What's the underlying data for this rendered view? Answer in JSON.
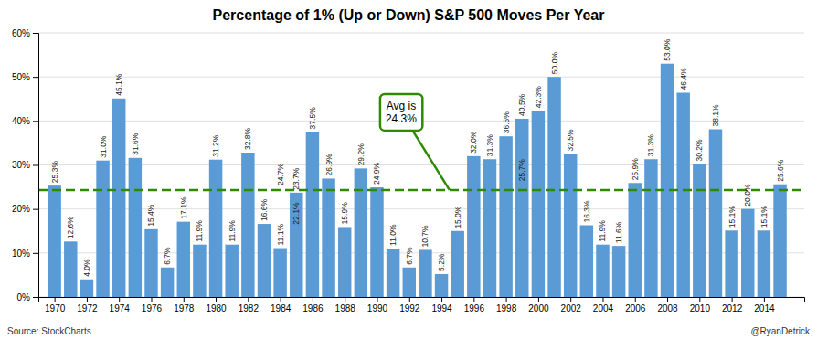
{
  "chart_data": {
    "type": "bar",
    "title": "Percentage of 1% (Up or Down) S&P 500 Moves Per Year",
    "x": [
      1970,
      1971,
      1972,
      1973,
      1974,
      1975,
      1976,
      1977,
      1978,
      1979,
      1980,
      1981,
      1982,
      1983,
      1984,
      1985,
      1986,
      1987,
      1988,
      1989,
      1990,
      1991,
      1992,
      1993,
      1994,
      1995,
      1996,
      1997,
      1998,
      1999,
      2000,
      2001,
      2002,
      2003,
      2004,
      2005,
      2006,
      2007,
      2008,
      2009,
      2010,
      2011,
      2012,
      2013,
      2014,
      2015
    ],
    "values": [
      25.3,
      12.6,
      4.0,
      31.0,
      45.1,
      31.6,
      15.4,
      6.7,
      17.1,
      11.9,
      31.2,
      11.9,
      32.8,
      16.6,
      11.1,
      23.7,
      37.5,
      26.9,
      15.9,
      29.2,
      24.9,
      11.0,
      6.7,
      10.7,
      5.2,
      15.0,
      32.0,
      31.3,
      36.5,
      40.5,
      42.3,
      50.0,
      32.5,
      16.3,
      11.9,
      11.6,
      25.9,
      31.3,
      53.0,
      46.4,
      30.2,
      38.1,
      15.1,
      20.0,
      15.1,
      25.6
    ],
    "value_labels": [
      "25.3%",
      "12.6%",
      "4.0%",
      "31.0%",
      "45.1%",
      "31.6%",
      "15.4%",
      "6.7%",
      "17.1%",
      "11.9%",
      "31.2%",
      "11.9%",
      "32.8%",
      "16.6%",
      "11.1%",
      "23.7%",
      "37.5%",
      "26.9%",
      "15.9%",
      "29.2%",
      "24.9%",
      "11.0%",
      "6.7%",
      "10.7%",
      "5.2%",
      "15.0%",
      "32.0%",
      "31.3%",
      "36.5%",
      "40.5%",
      "42.3%",
      "50.0%",
      "32.5%",
      "16.3%",
      "11.9%",
      "11.6%",
      "25.9%",
      "31.3%",
      "53.0%",
      "46.4%",
      "30.2%",
      "38.1%",
      "15.1%",
      "20.0%",
      "15.1%",
      "25.6%"
    ],
    "data_labels": true,
    "color": "#5B9BD5",
    "xlim": [
      1969,
      2016.5
    ],
    "xticks": [
      1970,
      1972,
      1974,
      1976,
      1978,
      1980,
      1982,
      1984,
      1986,
      1988,
      1990,
      1992,
      1994,
      1996,
      1998,
      2000,
      2002,
      2004,
      2006,
      2008,
      2010,
      2012,
      2014
    ],
    "ylim": [
      0,
      60
    ],
    "yticks": [
      {
        "value": 0,
        "label": "0%"
      },
      {
        "value": 10,
        "label": "10%"
      },
      {
        "value": 20,
        "label": "20%"
      },
      {
        "value": 30,
        "label": "30%"
      },
      {
        "value": 40,
        "label": "40%"
      },
      {
        "value": 50,
        "label": "50%"
      },
      {
        "value": 60,
        "label": "60%"
      }
    ],
    "grid": true,
    "avg_line": {
      "value": 24.3,
      "label": "Avg is\n24.3%",
      "color": "#2E8B00",
      "line_style": "dashed"
    },
    "annotations": [
      {
        "text": "24.7%",
        "x": 1984,
        "y": 24.7
      },
      {
        "text": "22.1%",
        "x": 1985,
        "y": 22.1
      },
      {
        "text": "25.7%",
        "x": 1999,
        "y": 25.7
      }
    ],
    "source": "Source: StockCharts",
    "credit": "@RyanDetrick"
  }
}
